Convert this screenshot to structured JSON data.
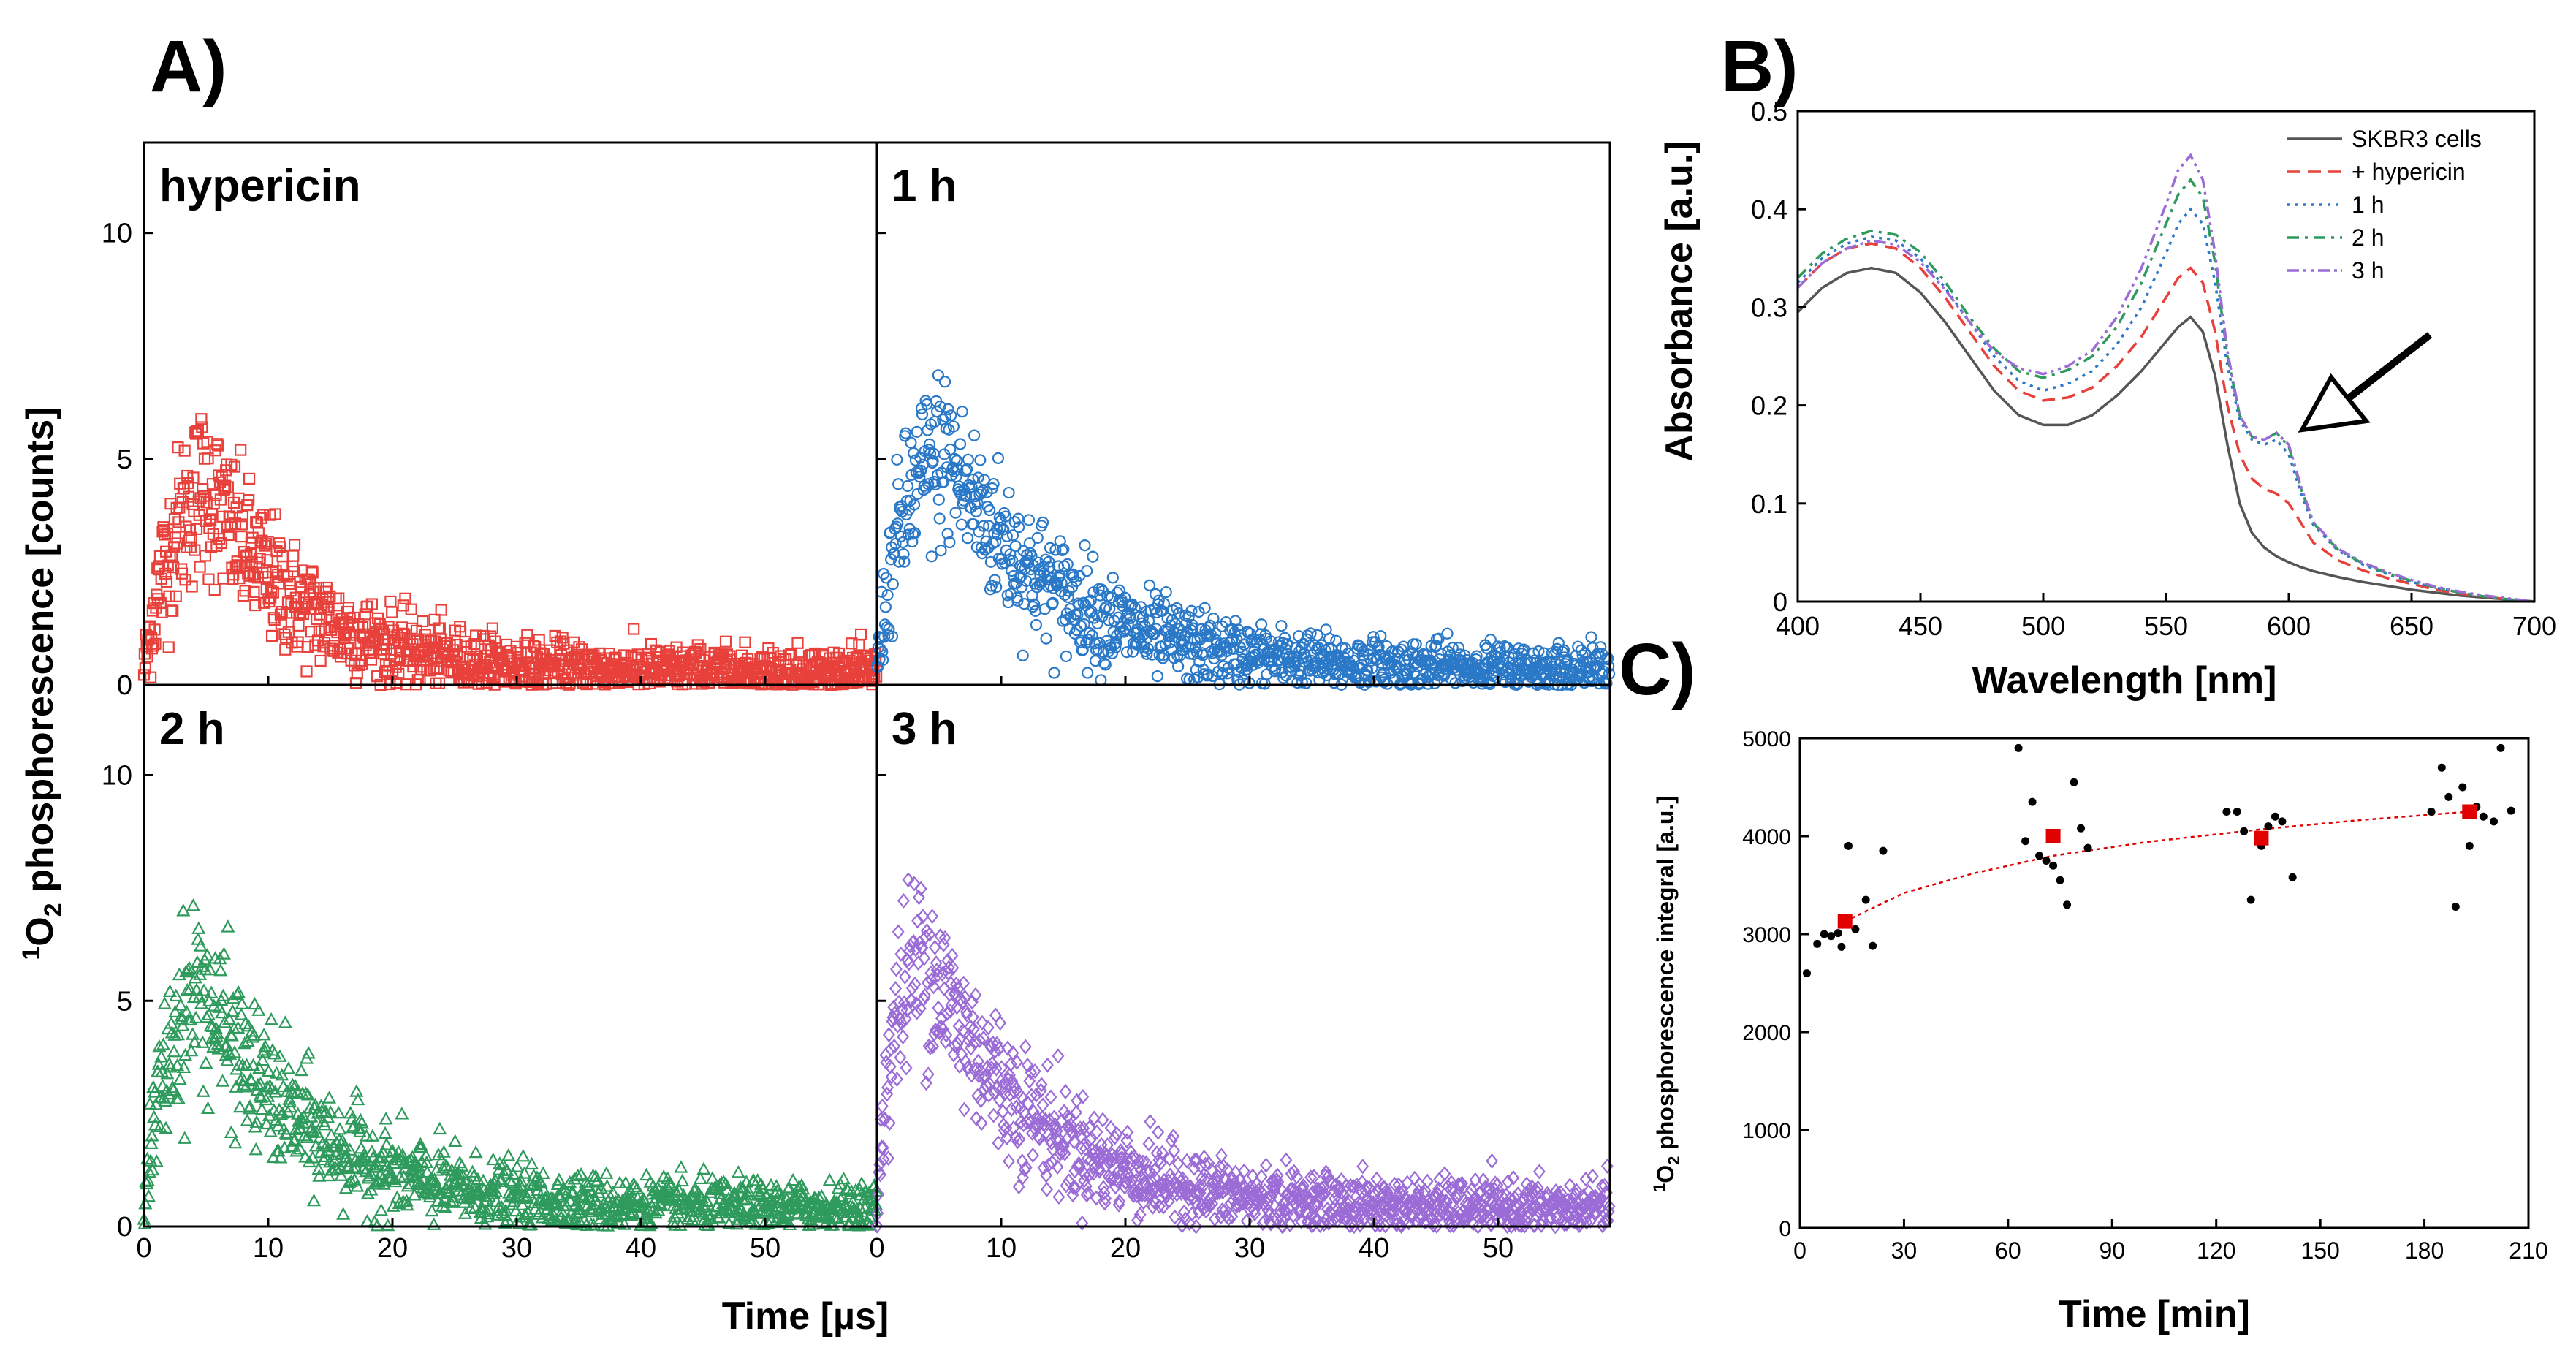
{
  "colors": {
    "hypericin": "#e8403a",
    "h1": "#2a78c8",
    "h2": "#2e9a5c",
    "h3": "#9b6bd6",
    "skbr3": "#555555",
    "mean": "#e00000",
    "points": "#000000"
  },
  "panel_letters": {
    "a": "A)",
    "b": "B)",
    "c": "C)"
  },
  "chart_data": [
    {
      "id": "A",
      "type": "scatter",
      "title": "A)",
      "xlabel": "Time [µs]",
      "ylabel": "1O2 phosphorescence [counts]",
      "ylabel_parts": {
        "sup": "1",
        "main": "O",
        "sub": "2",
        "rest": " phosphorescence [counts]"
      },
      "xlim": [
        0,
        59
      ],
      "ylim": [
        0,
        12
      ],
      "xticks": [
        "0",
        "10",
        "20",
        "30",
        "40",
        "50"
      ],
      "yticks": [
        "0",
        "5",
        "10"
      ],
      "subplots": [
        {
          "label": "hypericin",
          "marker": "square",
          "color_key": "hypericin",
          "peak_time": 5,
          "peak_value": 4.4,
          "rise": 2.4,
          "decay": 7.5,
          "baseline": 0.3,
          "noise": 0.85
        },
        {
          "label": "1 h",
          "marker": "circle",
          "color_key": "h1",
          "peak_time": 5.5,
          "peak_value": 5.1,
          "rise": 2.0,
          "decay": 9.0,
          "baseline": 0.35,
          "noise": 0.8
        },
        {
          "label": "2 h",
          "marker": "triangle",
          "color_key": "h2",
          "peak_time": 4.5,
          "peak_value": 5.3,
          "rise": 2.2,
          "decay": 8.5,
          "baseline": 0.4,
          "noise": 0.8
        },
        {
          "label": "3 h",
          "marker": "diamond",
          "color_key": "h3",
          "peak_time": 4.0,
          "peak_value": 6.0,
          "rise": 1.2,
          "decay": 8.5,
          "baseline": 0.4,
          "noise": 0.8
        }
      ]
    },
    {
      "id": "B",
      "type": "line",
      "title": "B)",
      "xlabel": "Wavelength [nm]",
      "ylabel": "Absorbance [a.u.]",
      "xlim": [
        400,
        700
      ],
      "ylim": [
        0,
        0.5
      ],
      "xticks": [
        "400",
        "450",
        "500",
        "550",
        "600",
        "650",
        "700"
      ],
      "yticks": [
        "0",
        "0.1",
        "0.2",
        "0.3",
        "0.4",
        "0.5"
      ],
      "legend": {
        "location": "top-right",
        "entries": [
          "SKBR3 cells",
          "+ hypericin",
          "1 h",
          "2 h",
          "3 h"
        ]
      },
      "x": [
        400,
        410,
        420,
        430,
        440,
        450,
        460,
        470,
        480,
        490,
        500,
        510,
        520,
        530,
        540,
        550,
        555,
        560,
        565,
        570,
        575,
        580,
        585,
        590,
        595,
        600,
        605,
        610,
        620,
        630,
        640,
        650,
        660,
        670,
        680,
        690,
        700
      ],
      "series": [
        {
          "name": "SKBR3 cells",
          "color_key": "skbr3",
          "dash": "solid",
          "values": [
            0.295,
            0.32,
            0.335,
            0.34,
            0.335,
            0.315,
            0.285,
            0.25,
            0.215,
            0.19,
            0.18,
            0.18,
            0.19,
            0.21,
            0.235,
            0.265,
            0.28,
            0.29,
            0.275,
            0.23,
            0.16,
            0.1,
            0.07,
            0.055,
            0.046,
            0.04,
            0.035,
            0.031,
            0.025,
            0.02,
            0.016,
            0.012,
            0.009,
            0.006,
            0.004,
            0.002,
            0.0
          ]
        },
        {
          "name": "+ hypericin",
          "color_key": "hypericin",
          "dash": "dash",
          "values": [
            0.32,
            0.345,
            0.36,
            0.365,
            0.36,
            0.34,
            0.31,
            0.275,
            0.24,
            0.215,
            0.205,
            0.208,
            0.218,
            0.24,
            0.27,
            0.31,
            0.33,
            0.34,
            0.325,
            0.275,
            0.2,
            0.15,
            0.125,
            0.115,
            0.11,
            0.1,
            0.08,
            0.06,
            0.042,
            0.032,
            0.024,
            0.018,
            0.012,
            0.008,
            0.005,
            0.002,
            0.0
          ]
        },
        {
          "name": "1 h",
          "color_key": "h1",
          "dash": "dot",
          "values": [
            0.325,
            0.35,
            0.365,
            0.372,
            0.368,
            0.35,
            0.32,
            0.285,
            0.25,
            0.225,
            0.215,
            0.222,
            0.235,
            0.262,
            0.3,
            0.355,
            0.385,
            0.4,
            0.385,
            0.325,
            0.24,
            0.185,
            0.165,
            0.16,
            0.165,
            0.15,
            0.11,
            0.078,
            0.052,
            0.038,
            0.028,
            0.02,
            0.014,
            0.009,
            0.005,
            0.002,
            0.0
          ]
        },
        {
          "name": "2 h",
          "color_key": "h2",
          "dash": "dashdot",
          "values": [
            0.33,
            0.355,
            0.37,
            0.378,
            0.374,
            0.356,
            0.326,
            0.29,
            0.258,
            0.235,
            0.228,
            0.236,
            0.25,
            0.28,
            0.325,
            0.385,
            0.415,
            0.43,
            0.412,
            0.345,
            0.25,
            0.19,
            0.168,
            0.165,
            0.172,
            0.158,
            0.115,
            0.08,
            0.053,
            0.039,
            0.029,
            0.021,
            0.014,
            0.009,
            0.005,
            0.002,
            0.0
          ]
        },
        {
          "name": "3 h",
          "color_key": "h3",
          "dash": "dashdotdot",
          "values": [
            0.32,
            0.345,
            0.36,
            0.368,
            0.364,
            0.346,
            0.318,
            0.285,
            0.255,
            0.238,
            0.232,
            0.24,
            0.256,
            0.29,
            0.34,
            0.405,
            0.44,
            0.455,
            0.43,
            0.355,
            0.255,
            0.19,
            0.168,
            0.165,
            0.172,
            0.16,
            0.117,
            0.081,
            0.054,
            0.04,
            0.03,
            0.022,
            0.015,
            0.01,
            0.006,
            0.003,
            0.0
          ]
        }
      ],
      "annotation": {
        "type": "arrow",
        "points_to_x": 600,
        "points_to_y": 0.175
      }
    },
    {
      "id": "C",
      "type": "scatter",
      "title": "C)",
      "xlabel": "Time [min]",
      "ylabel": "1O2 phosphorescence integral [a.u.]",
      "ylabel_parts": {
        "sup": "1",
        "main": "O",
        "sub": "2",
        "rest": " phosphorescence integral [a.u.]"
      },
      "xlim": [
        0,
        210
      ],
      "ylim": [
        0,
        5000
      ],
      "xticks": [
        "0",
        "30",
        "60",
        "90",
        "120",
        "150",
        "180",
        "210"
      ],
      "yticks": [
        "0",
        "1000",
        "2000",
        "3000",
        "4000",
        "5000"
      ],
      "points": [
        [
          2,
          2600
        ],
        [
          5,
          2900
        ],
        [
          7,
          3000
        ],
        [
          9,
          2980
        ],
        [
          11,
          3010
        ],
        [
          12,
          2870
        ],
        [
          14,
          3900
        ],
        [
          16,
          3050
        ],
        [
          19,
          3350
        ],
        [
          21,
          2880
        ],
        [
          24,
          3850
        ],
        [
          63,
          4900
        ],
        [
          65,
          3950
        ],
        [
          67,
          4350
        ],
        [
          69,
          3800
        ],
        [
          71,
          3750
        ],
        [
          73,
          3700
        ],
        [
          75,
          3550
        ],
        [
          77,
          3300
        ],
        [
          79,
          4550
        ],
        [
          81,
          4080
        ],
        [
          83,
          3880
        ],
        [
          123,
          4250
        ],
        [
          126,
          4250
        ],
        [
          128,
          4050
        ],
        [
          130,
          3350
        ],
        [
          133,
          3900
        ],
        [
          135,
          4100
        ],
        [
          137,
          4200
        ],
        [
          139,
          4150
        ],
        [
          142,
          3580
        ],
        [
          182,
          4250
        ],
        [
          185,
          4700
        ],
        [
          187,
          4400
        ],
        [
          189,
          3280
        ],
        [
          191,
          4500
        ],
        [
          193,
          3900
        ],
        [
          195,
          4300
        ],
        [
          197,
          4200
        ],
        [
          200,
          4150
        ],
        [
          202,
          4900
        ],
        [
          205,
          4260
        ]
      ],
      "means": [
        [
          13,
          3130
        ],
        [
          73,
          4000
        ],
        [
          133,
          3980
        ],
        [
          193,
          4250
        ]
      ],
      "fit": {
        "style": "dotted",
        "x": [
          13,
          30,
          50,
          73,
          100,
          133,
          160,
          193
        ],
        "y": [
          3130,
          3420,
          3620,
          3800,
          3940,
          4070,
          4160,
          4250
        ]
      }
    }
  ]
}
